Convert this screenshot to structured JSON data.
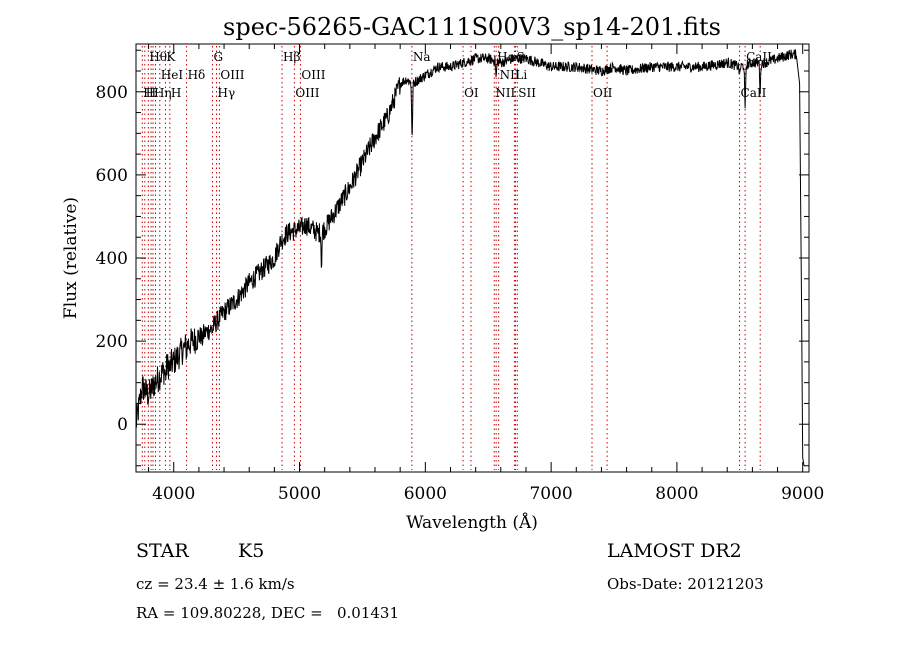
{
  "chart_data": {
    "type": "line",
    "title": "spec-56265-GAC111S00V3_sp14-201.fits",
    "xlabel": "Wavelength (Å)",
    "ylabel": "Flux (relative)",
    "xlim": [
      3700,
      9050
    ],
    "ylim": [
      -115,
      915
    ],
    "x_ticks": [
      4000,
      5000,
      6000,
      7000,
      8000,
      9000
    ],
    "y_ticks": [
      0,
      200,
      400,
      600,
      800
    ],
    "y_tick_labels": [
      "0",
      "200",
      "400",
      "600",
      "800"
    ],
    "grid": false,
    "line_color": "#000000",
    "marker_color": "#cc0000",
    "spectrum_anchors": [
      [
        3700,
        0
      ],
      [
        3750,
        90
      ],
      [
        3800,
        70
      ],
      [
        3850,
        100
      ],
      [
        3900,
        120
      ],
      [
        3950,
        140
      ],
      [
        4000,
        150
      ],
      [
        4100,
        190
      ],
      [
        4200,
        210
      ],
      [
        4300,
        230
      ],
      [
        4400,
        270
      ],
      [
        4500,
        300
      ],
      [
        4600,
        340
      ],
      [
        4700,
        370
      ],
      [
        4800,
        400
      ],
      [
        4850,
        440
      ],
      [
        4900,
        460
      ],
      [
        5000,
        470
      ],
      [
        5050,
        480
      ],
      [
        5100,
        470
      ],
      [
        5150,
        460
      ],
      [
        5200,
        470
      ],
      [
        5300,
        520
      ],
      [
        5400,
        570
      ],
      [
        5500,
        630
      ],
      [
        5600,
        690
      ],
      [
        5700,
        740
      ],
      [
        5750,
        780
      ],
      [
        5800,
        820
      ],
      [
        5850,
        830
      ],
      [
        5900,
        820
      ],
      [
        6000,
        840
      ],
      [
        6100,
        860
      ],
      [
        6200,
        860
      ],
      [
        6300,
        870
      ],
      [
        6400,
        880
      ],
      [
        6500,
        880
      ],
      [
        6600,
        870
      ],
      [
        6700,
        880
      ],
      [
        6800,
        880
      ],
      [
        6900,
        870
      ],
      [
        7000,
        860
      ],
      [
        7200,
        860
      ],
      [
        7400,
        850
      ],
      [
        7500,
        860
      ],
      [
        7600,
        850
      ],
      [
        7800,
        860
      ],
      [
        8000,
        860
      ],
      [
        8200,
        860
      ],
      [
        8400,
        870
      ],
      [
        8500,
        860
      ],
      [
        8600,
        870
      ],
      [
        8700,
        870
      ],
      [
        8800,
        880
      ],
      [
        8900,
        890
      ],
      [
        8950,
        890
      ]
    ],
    "spectrum_dips": [
      [
        3934,
        20
      ],
      [
        3969,
        10
      ],
      [
        4102,
        12
      ],
      [
        4226,
        15
      ],
      [
        4308,
        10
      ],
      [
        5175,
        80
      ],
      [
        5895,
        140
      ],
      [
        6563,
        40
      ],
      [
        8498,
        20
      ],
      [
        8542,
        110
      ],
      [
        8662,
        70
      ]
    ],
    "line_markers": {
      "row1": [
        {
          "label": "Hθ",
          "wavelength": 3798
        },
        {
          "label": "K",
          "wavelength": 3934
        },
        {
          "label": "G",
          "wavelength": 4308
        },
        {
          "label": "Hβ",
          "wavelength": 4861
        },
        {
          "label": "Na",
          "wavelength": 5893
        },
        {
          "label": "Hα",
          "wavelength": 6563
        },
        {
          "label": "S",
          "wavelength": 6717
        },
        {
          "label": "CaII",
          "wavelength": 8542
        }
      ],
      "row2": [
        {
          "label": "HeI",
          "wavelength": 3889
        },
        {
          "label": "Hδ",
          "wavelength": 4102
        },
        {
          "label": "OIII",
          "wavelength": 4363
        },
        {
          "label": "OIII",
          "wavelength": 5007
        },
        {
          "label": "NII",
          "wavelength": 6583
        },
        {
          "label": "Li",
          "wavelength": 6708
        }
      ],
      "row3": [
        {
          "label": "H",
          "wavelength": 3750
        },
        {
          "label": "H",
          "wavelength": 3770
        },
        {
          "label": "Hη",
          "wavelength": 3835
        },
        {
          "label": "H",
          "wavelength": 3969
        },
        {
          "label": "Hγ",
          "wavelength": 4340
        },
        {
          "label": "OIII",
          "wavelength": 4959
        },
        {
          "label": "OI",
          "wavelength": 6300
        },
        {
          "label": "NII",
          "wavelength": 6548
        },
        {
          "label": "SII",
          "wavelength": 6731
        },
        {
          "label": "OII",
          "wavelength": 7325
        },
        {
          "label": "CaII",
          "wavelength": 8498
        }
      ],
      "extra_dotted_lines": [
        3820,
        3855,
        6363,
        7445,
        8662
      ]
    }
  },
  "meta": {
    "object": "STAR",
    "subclass": "K5",
    "survey": "LAMOST DR2",
    "cz": "cz = 23.4 ± 1.6 km/s",
    "obs_date": "Obs-Date: 20121203",
    "coords": "RA = 109.80228, DEC =   0.01431"
  }
}
